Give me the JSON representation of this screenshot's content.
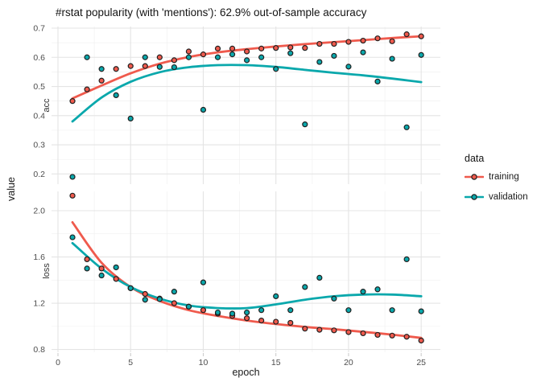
{
  "title": "#rstat popularity (with 'mentions'): 62.9% out-of-sample accuracy",
  "axes": {
    "x_label": "epoch",
    "y_label": "value"
  },
  "legend": {
    "title": "data",
    "position": "right",
    "entries": [
      {
        "label": "training",
        "color": "#EF5A4D"
      },
      {
        "label": "validation",
        "color": "#0AA8AC"
      }
    ]
  },
  "colors": {
    "training": "#EF5A4D",
    "validation": "#0AA8AC",
    "point_outline": "#202020",
    "grid_major": "#E4E4E4",
    "grid_minor": "#F1F1F1",
    "tick_text": "#4d4d4d",
    "tick_mark": "#c8c8c8"
  },
  "chart_data": {
    "type": "scatter",
    "title": "#rstat popularity (with 'mentions'): 62.9% out-of-sample accuracy",
    "xlabel": "epoch",
    "ylabel": "value",
    "legend_title": "data",
    "legend_position": "right",
    "grid": true,
    "x": [
      1,
      2,
      3,
      4,
      5,
      6,
      7,
      8,
      9,
      10,
      11,
      12,
      13,
      14,
      15,
      16,
      17,
      18,
      19,
      20,
      21,
      22,
      23,
      24,
      25
    ],
    "xticks": [
      0,
      5,
      10,
      15,
      20,
      25
    ],
    "xlim": [
      -0.443,
      26.32
    ],
    "facets": [
      {
        "label": "acc",
        "yticks": [
          0.2,
          0.3,
          0.4,
          0.5,
          0.6,
          0.7
        ],
        "ylim": [
          0.165,
          0.7055
        ],
        "series": [
          {
            "name": "training",
            "points": [
              0.45,
              0.49,
              0.52,
              0.56,
              0.57,
              0.57,
              0.6,
              0.59,
              0.62,
              0.61,
              0.63,
              0.63,
              0.62,
              0.63,
              0.632,
              0.634,
              0.632,
              0.646,
              0.646,
              0.653,
              0.657,
              0.665,
              0.655,
              0.679,
              0.672
            ],
            "smooth": [
              [
                1,
                0.459
              ],
              [
                3,
                0.503
              ],
              [
                5,
                0.545
              ],
              [
                7,
                0.578
              ],
              [
                9,
                0.601
              ],
              [
                11,
                0.617
              ],
              [
                13,
                0.628
              ],
              [
                15,
                0.637
              ],
              [
                17,
                0.645
              ],
              [
                19,
                0.652
              ],
              [
                21,
                0.659
              ],
              [
                23,
                0.666
              ],
              [
                25,
                0.672
              ]
            ]
          },
          {
            "name": "validation",
            "points": [
              0.19,
              0.6,
              0.56,
              0.47,
              0.39,
              0.6,
              0.567,
              0.566,
              0.6,
              0.42,
              0.6,
              0.61,
              0.59,
              0.6,
              0.56,
              0.614,
              0.37,
              0.584,
              0.605,
              0.568,
              0.617,
              0.517,
              0.595,
              0.36,
              0.608
            ],
            "smooth": [
              [
                1,
                0.38
              ],
              [
                3,
                0.462
              ],
              [
                5,
                0.516
              ],
              [
                7,
                0.549
              ],
              [
                9,
                0.566
              ],
              [
                11,
                0.573
              ],
              [
                13,
                0.573
              ],
              [
                15,
                0.567
              ],
              [
                17,
                0.557
              ],
              [
                19,
                0.547
              ],
              [
                21,
                0.538
              ],
              [
                23,
                0.527
              ],
              [
                25,
                0.515
              ]
            ]
          }
        ]
      },
      {
        "label": "loss",
        "yticks": [
          0.8,
          1.2,
          1.6,
          2.0
        ],
        "ylim": [
          0.776,
          2.167
        ],
        "series": [
          {
            "name": "training",
            "points": [
              2.13,
              1.58,
              1.5,
              1.41,
              1.33,
              1.28,
              1.24,
              1.2,
              1.17,
              1.14,
              1.11,
              1.09,
              1.07,
              1.05,
              1.04,
              1.03,
              0.98,
              0.97,
              0.965,
              0.95,
              0.94,
              0.926,
              0.92,
              0.91,
              0.877
            ],
            "smooth": [
              [
                1,
                1.9
              ],
              [
                3,
                1.55
              ],
              [
                5,
                1.34
              ],
              [
                7,
                1.22
              ],
              [
                9,
                1.14
              ],
              [
                11,
                1.09
              ],
              [
                13,
                1.05
              ],
              [
                15,
                1.02
              ],
              [
                17,
                0.995
              ],
              [
                19,
                0.975
              ],
              [
                21,
                0.952
              ],
              [
                23,
                0.928
              ],
              [
                25,
                0.9
              ]
            ]
          },
          {
            "name": "validation",
            "points": [
              1.77,
              1.5,
              1.44,
              1.51,
              1.33,
              1.23,
              1.235,
              1.3,
              1.17,
              1.38,
              1.12,
              1.11,
              1.12,
              1.14,
              1.26,
              1.14,
              1.34,
              1.42,
              1.24,
              1.14,
              1.3,
              1.32,
              1.14,
              1.58,
              1.13
            ],
            "smooth": [
              [
                1,
                1.72
              ],
              [
                3,
                1.5
              ],
              [
                5,
                1.34
              ],
              [
                7,
                1.24
              ],
              [
                9,
                1.18
              ],
              [
                11,
                1.158
              ],
              [
                13,
                1.158
              ],
              [
                15,
                1.19
              ],
              [
                17,
                1.23
              ],
              [
                19,
                1.26
              ],
              [
                21,
                1.275
              ],
              [
                23,
                1.275
              ],
              [
                25,
                1.26
              ]
            ]
          }
        ]
      }
    ]
  }
}
